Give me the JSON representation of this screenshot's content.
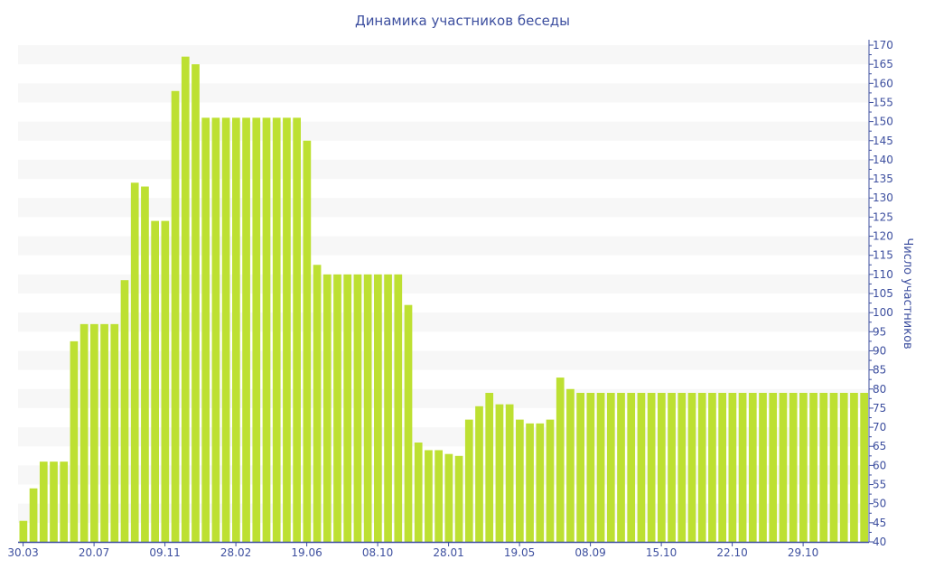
{
  "chart_data": {
    "type": "bar",
    "title": "Динамика участников беседы",
    "xlabel": "",
    "ylabel": "Число участников",
    "ylim": [
      40,
      170
    ],
    "ytick_step": 5,
    "grid": "alternating horizontal bands",
    "y_axis_side": "right",
    "colors": {
      "bar": "#bde032",
      "text": "#3d4f9f",
      "band": "#f7f7f7",
      "axis": "#3d4f9f"
    },
    "values": [
      45.5,
      54,
      61,
      61,
      61,
      92.5,
      97,
      97,
      97,
      97,
      108.5,
      134,
      133,
      124,
      124,
      158,
      167,
      165,
      151,
      151,
      151,
      151,
      151,
      151,
      151,
      151,
      151,
      151,
      145,
      112.5,
      110,
      110,
      110,
      110,
      110,
      110,
      110,
      110,
      102,
      66,
      64,
      64,
      63,
      62.5,
      72,
      75.5,
      79,
      76,
      76,
      72,
      71,
      71,
      72,
      83,
      80,
      79,
      79,
      79,
      79,
      79,
      79,
      79,
      79,
      79,
      79,
      79,
      79,
      79,
      79,
      79,
      79,
      79,
      79,
      79,
      79,
      79,
      79,
      79,
      79,
      79,
      79,
      79,
      79,
      79
    ],
    "x_tick_labels": [
      {
        "index": 0,
        "label": "30.03"
      },
      {
        "index": 7,
        "label": "20.07"
      },
      {
        "index": 14,
        "label": "09.11"
      },
      {
        "index": 21,
        "label": "28.02"
      },
      {
        "index": 28,
        "label": "19.06"
      },
      {
        "index": 35,
        "label": "08.10"
      },
      {
        "index": 42,
        "label": "28.01"
      },
      {
        "index": 49,
        "label": "19.05"
      },
      {
        "index": 56,
        "label": "08.09"
      },
      {
        "index": 63,
        "label": "15.10"
      },
      {
        "index": 70,
        "label": "22.10"
      },
      {
        "index": 77,
        "label": "29.10"
      }
    ]
  }
}
